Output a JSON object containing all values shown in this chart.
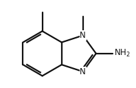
{
  "bg": "#ffffff",
  "lc": "#111111",
  "lw": 1.6,
  "fs": 8.5,
  "dpi": 100,
  "figsize": [
    1.98,
    1.28
  ]
}
